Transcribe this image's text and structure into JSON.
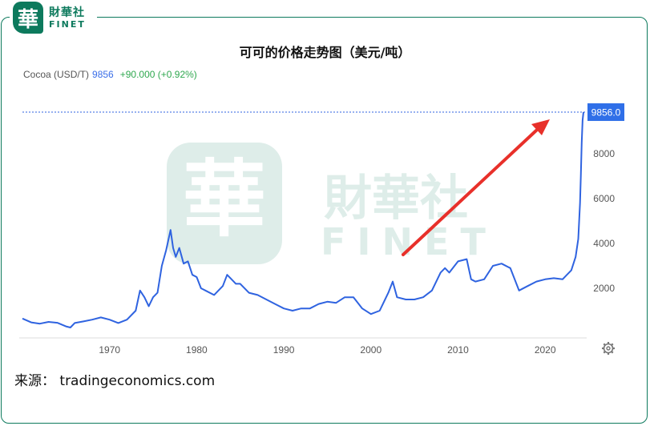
{
  "header": {
    "logo_glyph": "華",
    "logo_cn": "財華社",
    "logo_en": "FINET"
  },
  "legend": {
    "name": "Cocoa (USD/T)",
    "price": "9856",
    "change": "+90.000 (+0.92%)"
  },
  "source_text": "来源： tradingeconomics.com",
  "watermark": {
    "cn": "財華社",
    "en": "FINET",
    "glyph": "華"
  },
  "colors": {
    "line": "#2f63e0",
    "brand": "#0d7a5d",
    "arrow": "#e8302a",
    "change_positive": "#2fa84f",
    "price_label_bg": "#2f6fe8"
  },
  "icons": {
    "settings": "gear-icon"
  },
  "chart_data": {
    "type": "line",
    "title": "可可的价格走势图（美元/吨）",
    "xlabel": "",
    "ylabel": "",
    "xlim": [
      1960,
      2024.4
    ],
    "ylim": [
      0,
      10750
    ],
    "x_ticks": [
      1970,
      1980,
      1990,
      2000,
      2010,
      2020
    ],
    "y_ticks": [
      2000,
      4000,
      6000,
      8000
    ],
    "y_tick_labels": [
      "2000",
      "4000",
      "6000",
      "8000"
    ],
    "x_tick_labels": [
      "1970",
      "1980",
      "1990",
      "2000",
      "2010",
      "2020"
    ],
    "last_value_label": "9856.0",
    "last_value": 9856,
    "grid": false,
    "y_axis_side": "right",
    "annotation": "red upward arrow pointing toward the latest price",
    "series": [
      {
        "x": [
          1960,
          1961,
          1962,
          1963,
          1964,
          1965,
          1965.5,
          1966,
          1967,
          1968,
          1969,
          1970,
          1971,
          1972,
          1973,
          1973.5,
          1974,
          1974.5,
          1975,
          1975.5,
          1976,
          1976.5,
          1977,
          1977.3,
          1977.6,
          1978,
          1978.5,
          1979,
          1979.5,
          1980,
          1980.5,
          1981,
          1982,
          1983,
          1983.5,
          1984,
          1984.5,
          1985,
          1986,
          1987,
          1988,
          1989,
          1990,
          1991,
          1992,
          1993,
          1994,
          1995,
          1996,
          1997,
          1998,
          1999,
          2000,
          2001,
          2002,
          2002.5,
          2003,
          2004,
          2005,
          2006,
          2007,
          2008,
          2008.5,
          2009,
          2010,
          2011,
          2011.5,
          2012,
          2013,
          2014,
          2015,
          2016,
          2017,
          2018,
          2019,
          2020,
          2021,
          2022,
          2022.5,
          2023,
          2023.5,
          2023.8,
          2024,
          2024.1,
          2024.2,
          2024.3,
          2024.4
        ],
        "y": [
          650,
          480,
          420,
          500,
          460,
          300,
          250,
          450,
          520,
          600,
          700,
          600,
          450,
          600,
          1000,
          1900,
          1600,
          1200,
          1600,
          1800,
          3000,
          3700,
          4600,
          3800,
          3400,
          3800,
          3100,
          3200,
          2600,
          2500,
          2000,
          1900,
          1700,
          2100,
          2600,
          2400,
          2200,
          2200,
          1800,
          1700,
          1500,
          1300,
          1100,
          1000,
          1100,
          1100,
          1300,
          1400,
          1350,
          1600,
          1600,
          1100,
          850,
          1000,
          1800,
          2300,
          1600,
          1500,
          1500,
          1600,
          1900,
          2700,
          2900,
          2700,
          3200,
          3300,
          2400,
          2300,
          2400,
          3000,
          3100,
          2900,
          1900,
          2100,
          2300,
          2400,
          2450,
          2400,
          2600,
          2800,
          3400,
          4200,
          5800,
          7000,
          8500,
          9500,
          9856
        ]
      }
    ]
  }
}
